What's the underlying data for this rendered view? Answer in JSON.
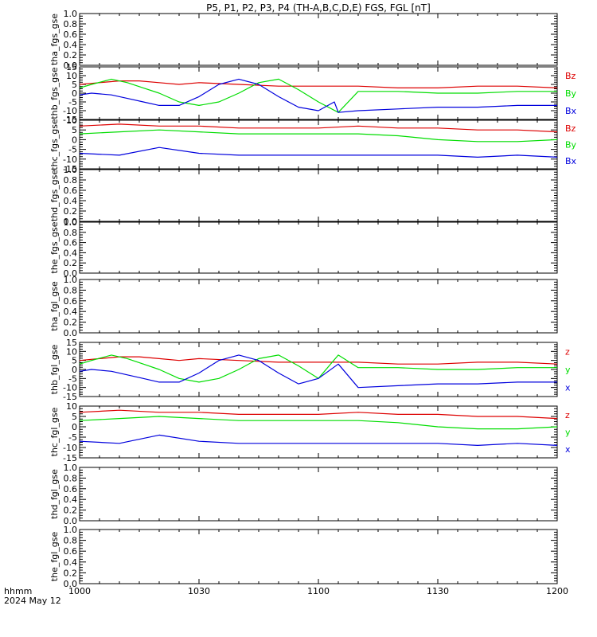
{
  "title": "P5, P1, P2, P3, P4 (TH-A,B,C,D,E) FGS, FGL [nT]",
  "time_axis": {
    "label_line1": "hhmm",
    "label_line2": "2024 May 12",
    "ticks": [
      "1000",
      "1030",
      "1100",
      "1130",
      "1200"
    ]
  },
  "colors": {
    "x": "#0000dd",
    "y": "#00dd00",
    "z": "#dd0000",
    "axis": "#000000"
  },
  "chart_data": [
    {
      "type": "line",
      "ylabel": "tha_fgs_gse",
      "ylim": [
        0,
        1.0
      ],
      "yticks": [
        "0.0",
        "0.2",
        "0.4",
        "0.6",
        "0.8",
        "1.0"
      ],
      "series": []
    },
    {
      "type": "line",
      "ylabel": "thb_fgs_gse",
      "ylim": [
        -15,
        15
      ],
      "yticks": [
        "-15",
        "-10",
        "-5",
        "0",
        "5",
        "10",
        "15"
      ],
      "series": [
        {
          "name": "Bz",
          "color": "#dd0000",
          "x": [
            0,
            5,
            10,
            15,
            20,
            25,
            30,
            40,
            50,
            60,
            70,
            80,
            90,
            100,
            110,
            120
          ],
          "values": [
            5,
            6,
            7,
            7,
            6,
            5,
            6,
            5,
            4,
            4,
            4,
            3,
            3,
            4,
            4,
            3
          ]
        },
        {
          "name": "By",
          "color": "#00dd00",
          "x": [
            0,
            3,
            8,
            12,
            16,
            20,
            25,
            30,
            35,
            40,
            45,
            50,
            55,
            60,
            65,
            70,
            80,
            90,
            100,
            110,
            120
          ],
          "values": [
            3,
            5,
            8,
            6,
            3,
            0,
            -5,
            -7,
            -5,
            0,
            6,
            8,
            2,
            -5,
            -11,
            1,
            1,
            0,
            0,
            1,
            1
          ]
        },
        {
          "name": "Bx",
          "color": "#0000dd",
          "x": [
            0,
            3,
            8,
            12,
            16,
            20,
            25,
            30,
            35,
            40,
            45,
            50,
            55,
            60,
            64,
            65,
            70,
            80,
            90,
            100,
            110,
            120
          ],
          "values": [
            -1,
            0,
            -1,
            -3,
            -5,
            -7,
            -7,
            -2,
            5,
            8,
            5,
            -2,
            -8,
            -10,
            -5,
            -11,
            -10,
            -9,
            -8,
            -8,
            -7,
            -7
          ]
        }
      ]
    },
    {
      "type": "line",
      "ylabel": "thc_fgs_gse",
      "ylim": [
        -15,
        10
      ],
      "yticks": [
        "-15",
        "-10",
        "-5",
        "0",
        "5",
        "10"
      ],
      "series": [
        {
          "name": "Bz",
          "color": "#dd0000",
          "x": [
            0,
            10,
            20,
            30,
            40,
            50,
            60,
            70,
            80,
            90,
            100,
            110,
            120
          ],
          "values": [
            7,
            8,
            7,
            7,
            6,
            6,
            6,
            7,
            6,
            6,
            5,
            5,
            4
          ]
        },
        {
          "name": "By",
          "color": "#00dd00",
          "x": [
            0,
            10,
            20,
            30,
            40,
            50,
            60,
            70,
            80,
            90,
            100,
            110,
            120
          ],
          "values": [
            3,
            4,
            5,
            4,
            3,
            3,
            3,
            3,
            2,
            0,
            -1,
            -1,
            0
          ]
        },
        {
          "name": "Bx",
          "color": "#0000dd",
          "x": [
            0,
            10,
            20,
            30,
            40,
            50,
            60,
            70,
            80,
            90,
            100,
            110,
            120
          ],
          "values": [
            -7,
            -8,
            -4,
            -7,
            -8,
            -8,
            -8,
            -8,
            -8,
            -8,
            -9,
            -8,
            -9
          ]
        }
      ]
    },
    {
      "type": "line",
      "ylabel": "thd_fgs_gse",
      "ylim": [
        0,
        1.0
      ],
      "yticks": [
        "0.0",
        "0.2",
        "0.4",
        "0.6",
        "0.8",
        "1.0"
      ],
      "series": []
    },
    {
      "type": "line",
      "ylabel": "the_fgs_gse",
      "ylim": [
        0,
        1.0
      ],
      "yticks": [
        "0.0",
        "0.2",
        "0.4",
        "0.6",
        "0.8",
        "1.0"
      ],
      "series": []
    },
    {
      "type": "line",
      "ylabel": "tha_fgl_gse",
      "ylim": [
        0,
        1.0
      ],
      "yticks": [
        "0.0",
        "0.2",
        "0.4",
        "0.6",
        "0.8",
        "1.0"
      ],
      "series": []
    },
    {
      "type": "line",
      "ylabel": "thb_fgl_gse",
      "ylim": [
        -15,
        15
      ],
      "yticks": [
        "-15",
        "-10",
        "-5",
        "0",
        "5",
        "10",
        "15"
      ],
      "series": [
        {
          "name": "z",
          "color": "#dd0000",
          "x": [
            0,
            5,
            10,
            15,
            20,
            25,
            30,
            40,
            50,
            60,
            70,
            80,
            90,
            100,
            110,
            120
          ],
          "values": [
            5,
            6,
            7,
            7,
            6,
            5,
            6,
            5,
            4,
            4,
            4,
            3,
            3,
            4,
            4,
            3
          ]
        },
        {
          "name": "y",
          "color": "#00dd00",
          "x": [
            0,
            3,
            8,
            12,
            16,
            20,
            25,
            30,
            35,
            40,
            45,
            50,
            55,
            60,
            65,
            70,
            80,
            90,
            100,
            110,
            120
          ],
          "values": [
            3,
            5,
            8,
            6,
            3,
            0,
            -5,
            -7,
            -5,
            0,
            6,
            8,
            2,
            -5,
            8,
            1,
            1,
            0,
            0,
            1,
            1
          ]
        },
        {
          "name": "x",
          "color": "#0000dd",
          "x": [
            0,
            3,
            8,
            12,
            16,
            20,
            25,
            30,
            35,
            40,
            45,
            50,
            55,
            60,
            65,
            70,
            80,
            90,
            100,
            110,
            120
          ],
          "values": [
            -1,
            0,
            -1,
            -3,
            -5,
            -7,
            -7,
            -2,
            5,
            8,
            5,
            -2,
            -8,
            -5,
            3,
            -10,
            -9,
            -8,
            -8,
            -7,
            -7
          ]
        }
      ]
    },
    {
      "type": "line",
      "ylabel": "thc_fgl_gse",
      "ylim": [
        -15,
        10
      ],
      "yticks": [
        "-15",
        "-10",
        "-5",
        "0",
        "5",
        "10"
      ],
      "series": [
        {
          "name": "z",
          "color": "#dd0000",
          "x": [
            0,
            10,
            20,
            30,
            40,
            50,
            60,
            70,
            80,
            90,
            100,
            110,
            120
          ],
          "values": [
            7,
            8,
            7,
            7,
            6,
            6,
            6,
            7,
            6,
            6,
            5,
            5,
            4
          ]
        },
        {
          "name": "y",
          "color": "#00dd00",
          "x": [
            0,
            10,
            20,
            30,
            40,
            50,
            60,
            70,
            80,
            90,
            100,
            110,
            120
          ],
          "values": [
            3,
            4,
            5,
            4,
            3,
            3,
            3,
            3,
            2,
            0,
            -1,
            -1,
            0
          ]
        },
        {
          "name": "x",
          "color": "#0000dd",
          "x": [
            0,
            10,
            20,
            30,
            40,
            50,
            60,
            70,
            80,
            90,
            100,
            110,
            120
          ],
          "values": [
            -7,
            -8,
            -4,
            -7,
            -8,
            -8,
            -8,
            -8,
            -8,
            -8,
            -9,
            -8,
            -9
          ]
        }
      ]
    },
    {
      "type": "line",
      "ylabel": "thd_fgl_gse",
      "ylim": [
        0,
        1.0
      ],
      "yticks": [
        "0.0",
        "0.2",
        "0.4",
        "0.6",
        "0.8",
        "1.0"
      ],
      "series": []
    },
    {
      "type": "line",
      "ylabel": "the_fgl_gse",
      "ylim": [
        0,
        1.0
      ],
      "yticks": [
        "0.0",
        "0.2",
        "0.4",
        "0.6",
        "0.8",
        "1.0"
      ],
      "series": []
    }
  ]
}
